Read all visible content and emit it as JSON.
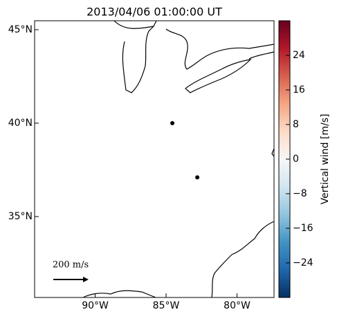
{
  "chart_data": {
    "type": "map",
    "title": "2013/04/06 01:00:00 UT",
    "xlim": [
      -94.27,
      -77.39
    ],
    "ylim": [
      30.67,
      45.48
    ],
    "xticks": [
      {
        "value": -90,
        "label": "90°W"
      },
      {
        "value": -85,
        "label": "85°W"
      },
      {
        "value": -80,
        "label": "80°W"
      }
    ],
    "yticks": [
      {
        "value": 45,
        "label": "45°N"
      },
      {
        "value": 40,
        "label": "40°N"
      },
      {
        "value": 35,
        "label": "35°N"
      }
    ],
    "x": [
      -84.56,
      -82.8
    ],
    "y": [
      40.0,
      37.1
    ],
    "color": "#000000",
    "scale_label": "200 m/s",
    "colorbar": {
      "label": "Vertical wind [m/s]",
      "lim": [
        -32,
        32
      ],
      "ticks": [
        {
          "value": 24,
          "label": "24"
        },
        {
          "value": 16,
          "label": "16"
        },
        {
          "value": 8,
          "label": "8"
        },
        {
          "value": 0,
          "label": "0"
        },
        {
          "value": -8,
          "label": "−8"
        },
        {
          "value": -16,
          "label": "−16"
        },
        {
          "value": -24,
          "label": "−24"
        }
      ],
      "colors": [
        "#053061",
        "#2166ac",
        "#4393c3",
        "#92c5de",
        "#d1e5f0",
        "#f7f7f7",
        "#fddbc7",
        "#f4a582",
        "#d6604d",
        "#b2182b",
        "#67001f"
      ]
    }
  }
}
